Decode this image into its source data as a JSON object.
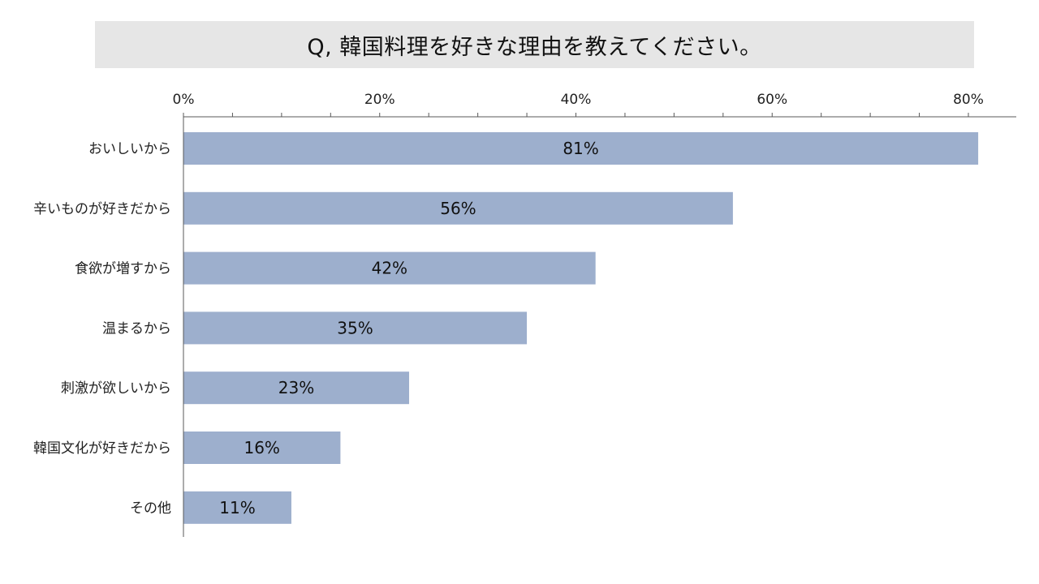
{
  "chart_data": {
    "type": "bar",
    "orientation": "horizontal",
    "title": "Q, 韓国料理を好きな理由を教えてください。",
    "categories": [
      "おいしいから",
      "辛いものが好きだから",
      "食欲が増すから",
      "温まるから",
      "刺激が欲しいから",
      "韓国文化が好きだから",
      "その他"
    ],
    "values": [
      81,
      56,
      42,
      35,
      23,
      16,
      11
    ],
    "data_labels": [
      "81%",
      "56%",
      "42%",
      "35%",
      "23%",
      "16%",
      "11%"
    ],
    "x_ticks": [
      "0%",
      "20%",
      "40%",
      "60%",
      "80%"
    ],
    "x_tick_values": [
      0,
      20,
      40,
      60,
      80
    ],
    "xlim": [
      0,
      85
    ],
    "xlabel": "",
    "ylabel": "",
    "x_axis_position": "top",
    "grid": false,
    "legend": "none",
    "bar_color": "#9dafcd",
    "axis_color": "#595959"
  }
}
